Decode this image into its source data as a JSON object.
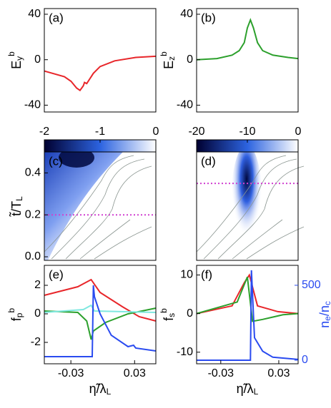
{
  "chart_data": [
    {
      "type": "line",
      "panel": "(a)",
      "ylabel": [
        {
          "text": "E"
        },
        {
          "text": "y",
          "shift": "sub"
        },
        {
          "text": "b",
          "shift": "sup"
        }
      ],
      "xlim": [
        -0.055,
        0.05
      ],
      "ylim": [
        -46,
        45
      ],
      "yticks": [
        -40,
        0,
        40
      ],
      "series": [
        {
          "color": "#e8262a",
          "x": [
            -0.055,
            -0.0361,
            -0.0298,
            -0.0246,
            -0.0214,
            -0.0183,
            -0.0172,
            -0.0151,
            -0.0088,
            -0.0025,
            0.0112,
            0.0311,
            0.05
          ],
          "values": [
            -10,
            -15,
            -19,
            -25,
            -27,
            -23,
            -20,
            -21,
            -12,
            -6,
            -1,
            2,
            3
          ]
        }
      ]
    },
    {
      "type": "line",
      "panel": "(b)",
      "ylabel": [
        {
          "text": "E"
        },
        {
          "text": "z",
          "shift": "sub"
        },
        {
          "text": "b",
          "shift": "sup"
        }
      ],
      "xlim": [
        -0.055,
        0.05
      ],
      "ylim": [
        -46,
        45
      ],
      "yticks": [
        -40,
        0,
        40
      ],
      "series": [
        {
          "color": "#2ca02c",
          "x": [
            -0.055,
            -0.034,
            -0.0183,
            -0.0109,
            -0.0057,
            -0.0025,
            0.0007,
            0.0038,
            0.008,
            0.0133,
            0.0238,
            0.0395,
            0.05
          ],
          "values": [
            0,
            1,
            4,
            8,
            15,
            28,
            35,
            28,
            15,
            8,
            4,
            2,
            1
          ]
        }
      ]
    },
    {
      "type": "heatmap",
      "panel": "(c)",
      "ylabel": [
        {
          "text": "t̃/T"
        },
        {
          "text": "L",
          "shift": "sub"
        }
      ],
      "xlim": [
        -0.055,
        0.05
      ],
      "ylim": [
        -0.017,
        0.5
      ],
      "yticks": [
        {
          "value": 0,
          "label": "0.0"
        },
        0.2,
        0.4
      ],
      "colorbar": {
        "lim": [
          -2,
          0
        ],
        "ticks": [
          -2,
          -1,
          0
        ]
      },
      "colormap": [
        "#000030",
        "#2c63e0",
        "#ffffff"
      ],
      "hline": 0.2,
      "hline_color": "#d040d0"
    },
    {
      "type": "heatmap",
      "panel": "(d)",
      "xlim": [
        -0.055,
        0.05
      ],
      "ylim": [
        -0.017,
        0.5
      ],
      "colorbar": {
        "lim": [
          -20,
          0
        ],
        "ticks": [
          -20,
          -10,
          0
        ]
      },
      "colormap": [
        "#000030",
        "#2c63e0",
        "#ffffff"
      ],
      "hline": 0.35,
      "hline_color": "#d040d0"
    },
    {
      "type": "line",
      "panel": "(e)",
      "ylabel": [
        {
          "text": "f"
        },
        {
          "text": "p",
          "shift": "sub"
        },
        {
          "text": "b",
          "shift": "sup"
        }
      ],
      "xlabel": [
        {
          "text": "η̃/λ"
        },
        {
          "text": "L",
          "shift": "sub"
        }
      ],
      "xlim": [
        -0.055,
        0.05
      ],
      "xticks": [
        -0.03,
        0.03
      ],
      "ylim": [
        -3.5,
        3.4
      ],
      "yticks": [
        -2,
        0,
        2
      ],
      "series": [
        {
          "color": "#e8262a",
          "x": [
            -0.055,
            -0.0235,
            -0.0109,
            -0.0025,
            0.0185,
            0.0343,
            0.05
          ],
          "values": [
            1.3,
            1.9,
            2.4,
            1.5,
            0.5,
            -0.2,
            -0.5
          ]
        },
        {
          "color": "#2ca02c",
          "x": [
            -0.055,
            -0.0235,
            -0.0151,
            -0.0109,
            -0.0088,
            0.0028,
            0.0238,
            0.05
          ],
          "values": [
            0.2,
            0.1,
            -0.5,
            -1.8,
            -1.2,
            -0.6,
            0,
            0.4
          ]
        },
        {
          "color": "#7fe8e0",
          "x": [
            -0.055,
            -0.0183,
            -0.0109,
            -0.0078,
            0.05
          ],
          "values": [
            0.1,
            0.3,
            0.6,
            0.2,
            0.1
          ]
        },
        {
          "color": "#2a4bf0",
          "x": [
            -0.055,
            -0.0099,
            -0.0088,
            -0.0078,
            -0.0025,
            0.008,
            0.0238,
            0.029,
            0.0311,
            0.05
          ],
          "values": [
            -3,
            -3,
            2,
            1.2,
            0,
            -1.5,
            -2.3,
            -2.2,
            -2.4,
            -2.6
          ]
        }
      ]
    },
    {
      "type": "line",
      "panel": "(f)",
      "ylabel": [
        {
          "text": "f"
        },
        {
          "text": "s",
          "shift": "sub"
        },
        {
          "text": "b",
          "shift": "sup"
        }
      ],
      "xlabel": [
        {
          "text": "η̃/λ"
        },
        {
          "text": "L",
          "shift": "sub"
        }
      ],
      "y2label": [
        {
          "text": "n"
        },
        {
          "text": "e",
          "shift": "sub"
        },
        {
          "text": "/n"
        },
        {
          "text": "c",
          "shift": "sub"
        }
      ],
      "y2color": "#2a4bf0",
      "xlim": [
        -0.055,
        0.05
      ],
      "xticks": [
        -0.03,
        0.03
      ],
      "ylim": [
        -13,
        12.5
      ],
      "yticks": [
        -10,
        0,
        10
      ],
      "y2lim": [
        -24,
        633
      ],
      "y2ticks": [
        0,
        500
      ],
      "series": [
        {
          "color": "#e8262a",
          "x": [
            -0.055,
            -0.0183,
            -0.0057,
            -0.0004,
            0.008,
            0.029,
            0.05
          ],
          "values": [
            0,
            2,
            8,
            10,
            2,
            0.5,
            0
          ]
        },
        {
          "color": "#2ca02c",
          "x": [
            -0.055,
            -0.013,
            -0.0025,
            0.0028,
            0.0133,
            0.0343,
            0.05
          ],
          "values": [
            0,
            3,
            9.5,
            -2,
            -1.5,
            -0.3,
            0
          ]
        },
        {
          "color": "#2a4bf0",
          "axis": "y2",
          "x": [
            -0.055,
            0.0007,
            0.0017,
            0.0049,
            0.0133,
            0.0238,
            0.05
          ],
          "values": [
            0,
            0,
            600,
            150,
            60,
            20,
            5
          ]
        }
      ]
    }
  ]
}
